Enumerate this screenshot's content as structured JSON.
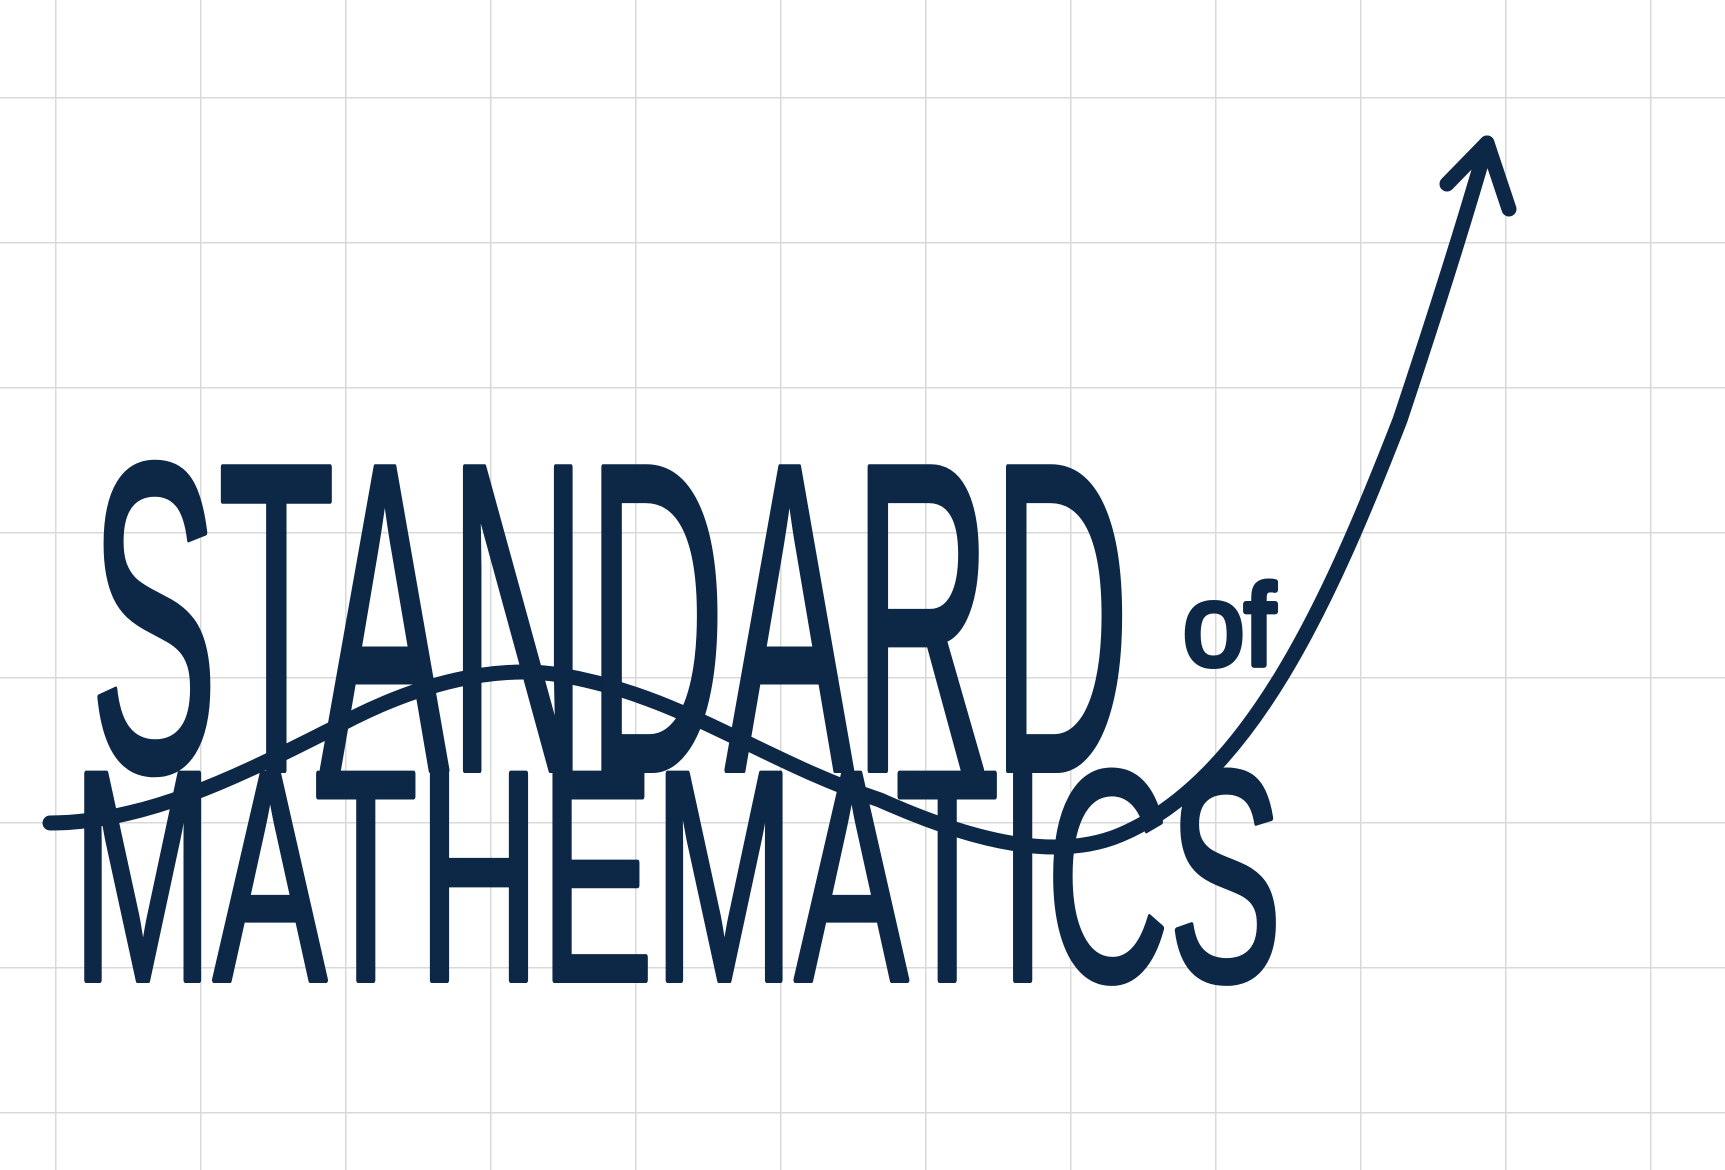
{
  "logo": {
    "line1": "STANDARD",
    "connector": "of",
    "line2": "MATHEMATICS"
  }
}
